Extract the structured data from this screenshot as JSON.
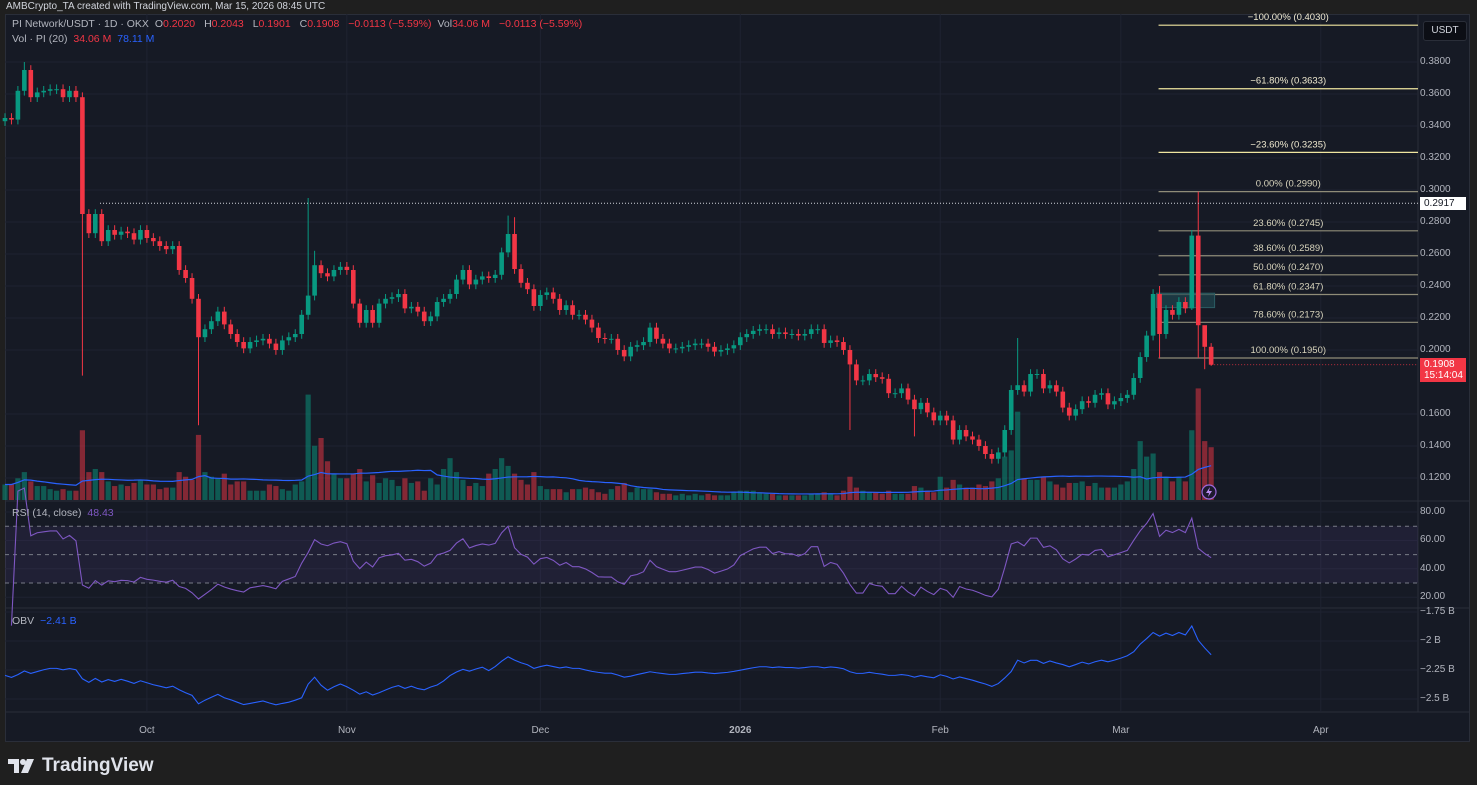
{
  "header": {
    "attribution": "AMBCrypto_TA created with TradingView.com, Mar 15, 2026 08:45 UTC"
  },
  "legend": {
    "symbol": "PI Network/USDT · 1D · OKX",
    "o_label": "O",
    "o": "0.2020",
    "h_label": "H",
    "h": "0.2043",
    "l_label": "L",
    "l": "0.1901",
    "c_label": "C",
    "c": "0.1908",
    "change": "−0.0113 (−5.59%)",
    "vol_label": "Vol",
    "vol": "34.06 M",
    "vol_change": "−0.0113 (−5.59%)",
    "vol_ma_label": "Vol · PI (20)",
    "vol_ma_current": "34.06 M",
    "vol_ma_value": "78.11 M",
    "rsi_label": "RSI (14, close)",
    "rsi_value": "48.43",
    "obv_label": "OBV",
    "obv_value": "−2.41 B"
  },
  "price_axis": {
    "currency": "USDT",
    "ticks": [
      {
        "value": 0.38,
        "label": "0.3800"
      },
      {
        "value": 0.36,
        "label": "0.3600"
      },
      {
        "value": 0.34,
        "label": "0.3400"
      },
      {
        "value": 0.32,
        "label": "0.3200"
      },
      {
        "value": 0.3,
        "label": "0.3000"
      },
      {
        "value": 0.28,
        "label": "0.2800"
      },
      {
        "value": 0.26,
        "label": "0.2600"
      },
      {
        "value": 0.24,
        "label": "0.2400"
      },
      {
        "value": 0.22,
        "label": "0.2200"
      },
      {
        "value": 0.2,
        "label": "0.2000"
      },
      {
        "value": 0.16,
        "label": "0.1600"
      },
      {
        "value": 0.14,
        "label": "0.1400"
      },
      {
        "value": 0.12,
        "label": "0.1200"
      }
    ],
    "resistance_label": "0.2917",
    "resistance_value": 0.2917,
    "last_price": "0.1908",
    "countdown": "15:14:04"
  },
  "rsi_axis": [
    {
      "value": 80,
      "label": "80.00"
    },
    {
      "value": 60,
      "label": "60.00"
    },
    {
      "value": 40,
      "label": "40.00"
    },
    {
      "value": 20,
      "label": "20.00"
    }
  ],
  "obv_axis": [
    {
      "value": -1.75,
      "label": "−1.75 B"
    },
    {
      "value": -2.0,
      "label": "−2 B"
    },
    {
      "value": -2.25,
      "label": "−2.25 B"
    },
    {
      "value": -2.5,
      "label": "−2.5 B"
    }
  ],
  "time_axis": [
    {
      "label": "Oct",
      "index": 22
    },
    {
      "label": "Nov",
      "index": 53
    },
    {
      "label": "Dec",
      "index": 83
    },
    {
      "label": "2026",
      "index": 114,
      "bold": true
    },
    {
      "label": "Feb",
      "index": 145
    },
    {
      "label": "Mar",
      "index": 173
    },
    {
      "label": "Apr",
      "index": 204
    }
  ],
  "fib": {
    "start_index": 179,
    "levels": [
      {
        "label": "−100.00% (0.4030)",
        "value": 0.403,
        "ext": true
      },
      {
        "label": "−61.80% (0.3633)",
        "value": 0.3633,
        "ext": true
      },
      {
        "label": "−23.60% (0.3235)",
        "value": 0.3235,
        "ext": true
      },
      {
        "label": "0.00% (0.2990)",
        "value": 0.299
      },
      {
        "label": "23.60% (0.2745)",
        "value": 0.2745
      },
      {
        "label": "38.60% (0.2589)",
        "value": 0.2589
      },
      {
        "label": "50.00% (0.2470)",
        "value": 0.247
      },
      {
        "label": "61.80% (0.2347)",
        "value": 0.2347
      },
      {
        "label": "78.60% (0.2173)",
        "value": 0.2173
      },
      {
        "label": "100.00% (0.1950)",
        "value": 0.195
      }
    ],
    "zone": {
      "from_index": 179,
      "to_index": 188,
      "top": 0.2355,
      "bottom": 0.2265
    }
  },
  "footer": {
    "brand": "TradingView"
  },
  "colors": {
    "up": "#089981",
    "down": "#f23645",
    "vol_ma": "#2962ff",
    "rsi": "#7e57c2",
    "obv": "#2962ff",
    "fib_ext": "#f0e6a0",
    "fib": "#8f8c78"
  },
  "chart_data": {
    "type": "candlestick",
    "title": "PI Network/USDT · 1D · OKX",
    "first_date": "2025-09-09",
    "first_open": 0.343,
    "ylim": [
      0.105,
      0.41
    ],
    "close": [
      0.345,
      0.344,
      0.362,
      0.375,
      0.358,
      0.361,
      0.362,
      0.363,
      0.363,
      0.358,
      0.362,
      0.358,
      0.285,
      0.273,
      0.285,
      0.268,
      0.275,
      0.272,
      0.274,
      0.273,
      0.269,
      0.275,
      0.27,
      0.268,
      0.265,
      0.263,
      0.265,
      0.25,
      0.245,
      0.232,
      0.208,
      0.213,
      0.218,
      0.224,
      0.216,
      0.21,
      0.205,
      0.201,
      0.205,
      0.206,
      0.207,
      0.204,
      0.2,
      0.206,
      0.208,
      0.21,
      0.222,
      0.234,
      0.253,
      0.248,
      0.246,
      0.25,
      0.252,
      0.25,
      0.229,
      0.217,
      0.225,
      0.217,
      0.229,
      0.232,
      0.233,
      0.235,
      0.226,
      0.227,
      0.224,
      0.218,
      0.221,
      0.23,
      0.232,
      0.235,
      0.244,
      0.25,
      0.241,
      0.244,
      0.246,
      0.245,
      0.247,
      0.261,
      0.2725,
      0.2506,
      0.242,
      0.238,
      0.2275,
      0.2344,
      0.236,
      0.232,
      0.225,
      0.228,
      0.222,
      0.222,
      0.219,
      0.214,
      0.2075,
      0.207,
      0.207,
      0.2,
      0.196,
      0.202,
      0.203,
      0.205,
      0.214,
      0.207,
      0.204,
      0.201,
      0.201,
      0.202,
      0.203,
      0.204,
      0.204,
      0.202,
      0.199,
      0.2,
      0.201,
      0.203,
      0.208,
      0.21,
      0.212,
      0.213,
      0.213,
      0.21,
      0.211,
      0.21,
      0.21,
      0.209,
      0.21,
      0.213,
      0.213,
      0.2044,
      0.206,
      0.205,
      0.2,
      0.191,
      0.181,
      0.181,
      0.185,
      0.183,
      0.182,
      0.173,
      0.173,
      0.176,
      0.169,
      0.163,
      0.167,
      0.161,
      0.156,
      0.159,
      0.156,
      0.144,
      0.15,
      0.146,
      0.144,
      0.14,
      0.135,
      0.132,
      0.136,
      0.15,
      0.175,
      0.178,
      0.174,
      0.185,
      0.185,
      0.176,
      0.178,
      0.174,
      0.164,
      0.159,
      0.163,
      0.168,
      0.167,
      0.172,
      0.173,
      0.166,
      0.168,
      0.17,
      0.172,
      0.1825,
      0.1956,
      0.209,
      0.235,
      0.21,
      0.225,
      0.222,
      0.23,
      0.226,
      0.2715,
      0.2155,
      0.202,
      0.1908
    ],
    "wick_overrides": [
      {
        "index": 3,
        "high": 0.38
      },
      {
        "index": 12,
        "low": 0.184
      },
      {
        "index": 30,
        "low": 0.153
      },
      {
        "index": 47,
        "high": 0.295
      },
      {
        "index": 48,
        "high": 0.262
      },
      {
        "index": 78,
        "high": 0.284
      },
      {
        "index": 79,
        "high": 0.283
      },
      {
        "index": 131,
        "low": 0.15
      },
      {
        "index": 141,
        "low": 0.146
      },
      {
        "index": 157,
        "high": 0.2075
      },
      {
        "index": 179,
        "high": 0.24,
        "low": 0.195
      },
      {
        "index": 184,
        "high": 0.275,
        "low": 0.225
      },
      {
        "index": 185,
        "high": 0.299,
        "low": 0.195
      },
      {
        "index": 186,
        "high": 0.2043,
        "low": 0.188
      },
      {
        "index": 187,
        "high": 0.2043,
        "low": 0.1901
      }
    ],
    "volume_millions": [
      10,
      10,
      14,
      18,
      12,
      9,
      9,
      7,
      6,
      7,
      6,
      6,
      45,
      18,
      20,
      18,
      12,
      9,
      10,
      9,
      11,
      13,
      10,
      10,
      7,
      8,
      8,
      18,
      15,
      13,
      42,
      18,
      15,
      14,
      17,
      10,
      12,
      12,
      6,
      6,
      6,
      10,
      9,
      7,
      6,
      10,
      12,
      68,
      35,
      40,
      25,
      17,
      14,
      14,
      17,
      20,
      12,
      16,
      11,
      14,
      13,
      9,
      14,
      11,
      12,
      6,
      14,
      10,
      20,
      27,
      18,
      13,
      9,
      11,
      9,
      17,
      20,
      27,
      22,
      17,
      13,
      10,
      18,
      9,
      7,
      7,
      7,
      5,
      7,
      7,
      8,
      7,
      5,
      4,
      7,
      9,
      11,
      5,
      8,
      7,
      7,
      5,
      4,
      4,
      3,
      4,
      3,
      4,
      3,
      4,
      3,
      3,
      3,
      5,
      6,
      6,
      6,
      5,
      4,
      4,
      3,
      3,
      3,
      3,
      3,
      4,
      4,
      5,
      4,
      3,
      6,
      15,
      8,
      6,
      5,
      5,
      4,
      6,
      4,
      4,
      4,
      9,
      8,
      6,
      5,
      15,
      8,
      13,
      10,
      8,
      8,
      10,
      9,
      12,
      14,
      28,
      32,
      57,
      14,
      13,
      13,
      15,
      12,
      10,
      8,
      11,
      11,
      12,
      9,
      11,
      8,
      8,
      8,
      10,
      12,
      20,
      38,
      28,
      30,
      18,
      15,
      12,
      15,
      12,
      45,
      72,
      38,
      34.06
    ],
    "indicators": {
      "volume_ma_period": 20,
      "rsi_period": 14,
      "rsi_bands": [
        70,
        50,
        30
      ]
    }
  }
}
